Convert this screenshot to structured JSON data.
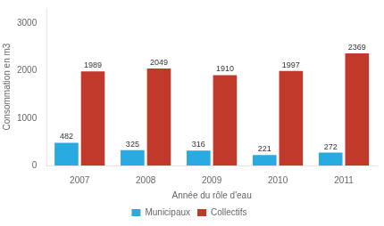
{
  "chart_data": {
    "type": "bar",
    "categories": [
      "2007",
      "2008",
      "2009",
      "2010",
      "2011"
    ],
    "series": [
      {
        "name": "Municipaux",
        "color": "#29ABE2",
        "values": [
          482,
          325,
          316,
          221,
          272
        ]
      },
      {
        "name": "Collectifs",
        "color": "#C0392B",
        "values": [
          1989,
          2049,
          1910,
          1997,
          2369
        ]
      }
    ],
    "xlabel": "Année du rôle d'eau",
    "ylabel": "Consommation en m3",
    "ylim": [
      0,
      3330
    ],
    "yticks": [
      0,
      1000,
      2000,
      3000
    ],
    "grid": false,
    "legend": "bottom",
    "data_labels": true
  }
}
